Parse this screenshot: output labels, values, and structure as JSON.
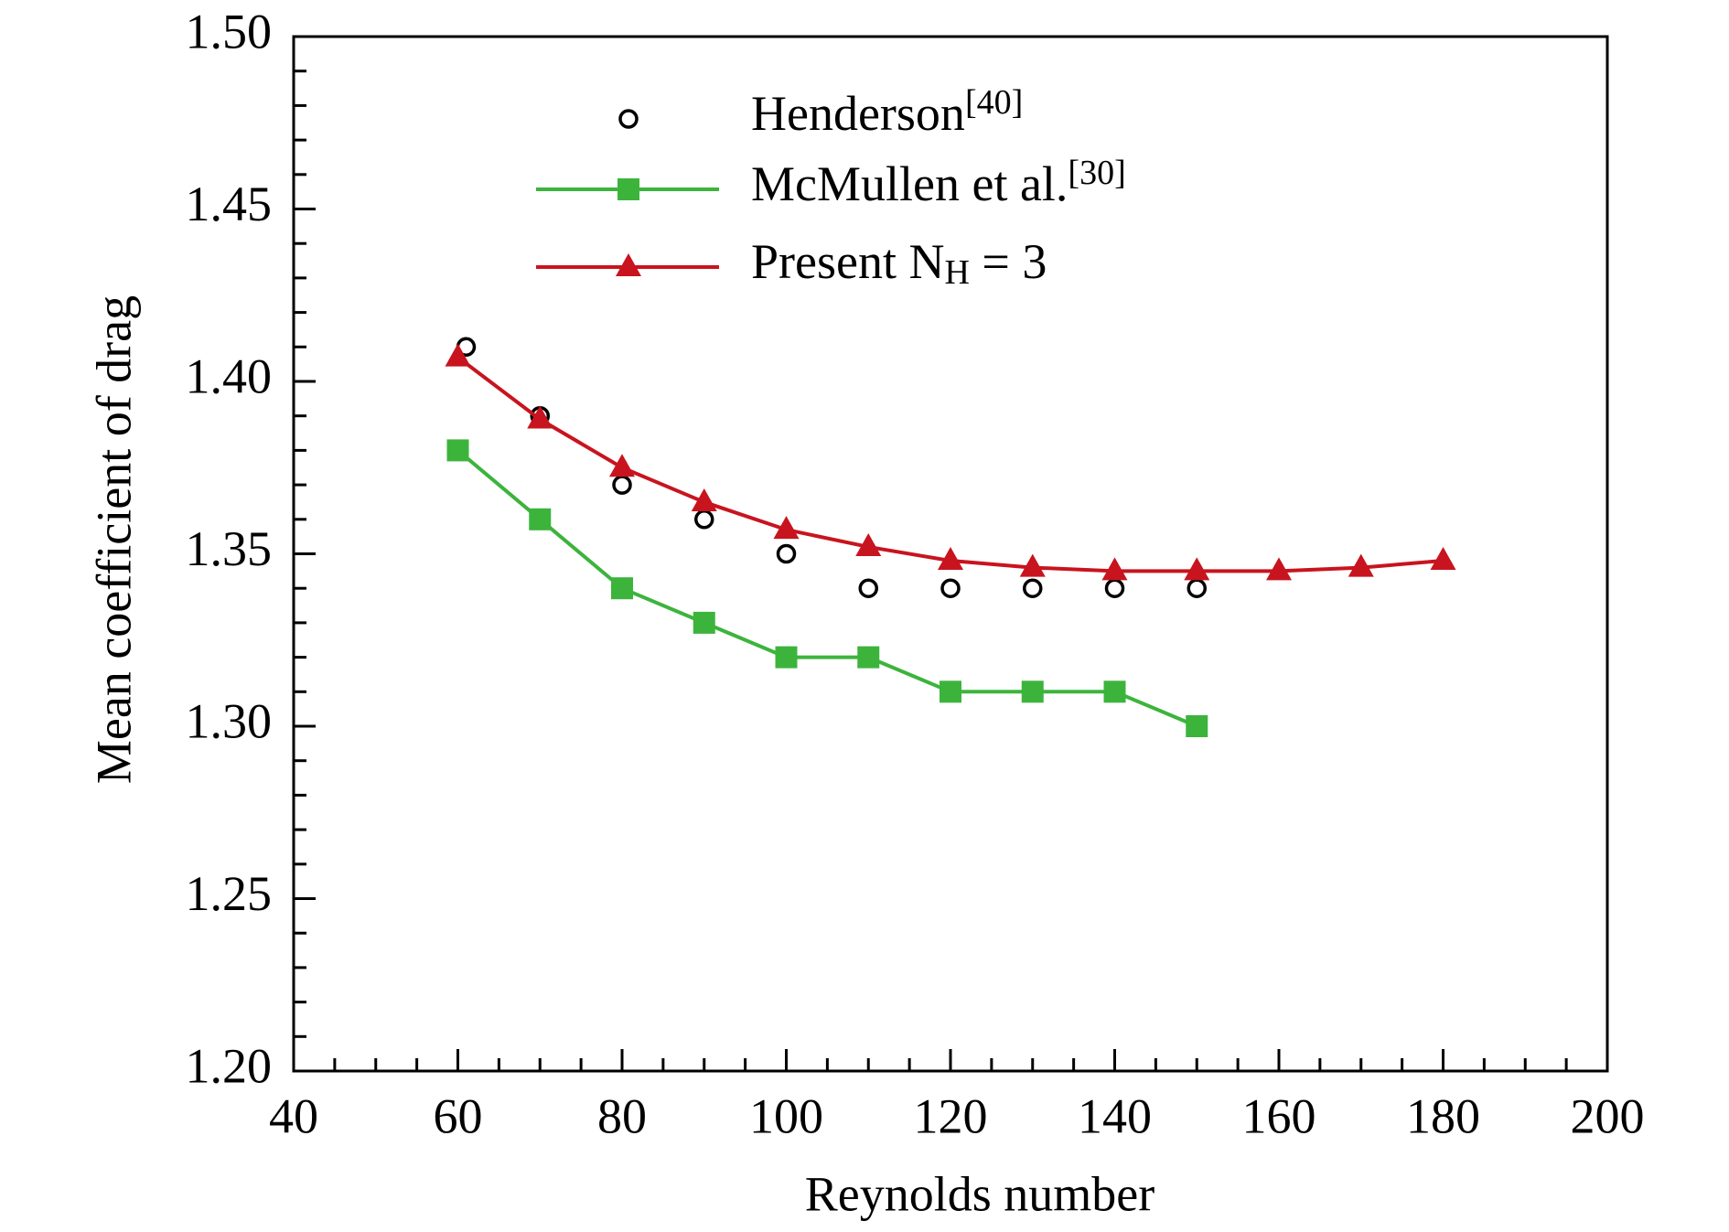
{
  "chart_data": {
    "type": "line",
    "x_label": "Reynolds number",
    "y_label": "Mean coefficient of drag",
    "xlim": [
      40,
      200
    ],
    "ylim": [
      1.2,
      1.5
    ],
    "xticks": [
      40,
      60,
      80,
      100,
      120,
      140,
      160,
      180,
      200
    ],
    "yticks": [
      {
        "value": 1.2,
        "label": "1.20"
      },
      {
        "value": 1.25,
        "label": "1.25"
      },
      {
        "value": 1.3,
        "label": "1.30"
      },
      {
        "value": 1.35,
        "label": "1.35"
      },
      {
        "value": 1.4,
        "label": "1.40"
      },
      {
        "value": 1.45,
        "label": "1.45"
      },
      {
        "value": 1.5,
        "label": "1.50"
      }
    ],
    "x_minor_ticks": [
      45,
      50,
      55,
      65,
      70,
      75,
      85,
      90,
      95,
      105,
      110,
      115,
      125,
      130,
      135,
      145,
      150,
      155,
      165,
      170,
      175,
      185,
      190,
      195
    ],
    "y_minor_ticks": [
      1.21,
      1.22,
      1.23,
      1.24,
      1.26,
      1.27,
      1.28,
      1.29,
      1.31,
      1.32,
      1.33,
      1.34,
      1.36,
      1.37,
      1.38,
      1.39,
      1.41,
      1.42,
      1.43,
      1.44,
      1.46,
      1.47,
      1.48,
      1.49
    ],
    "legend": "upper center",
    "series": [
      {
        "name": "Henderson[40]",
        "color": "#000000",
        "marker": "circle",
        "line": false,
        "x": [
          61,
          70,
          80,
          90,
          100,
          110,
          120,
          130,
          140,
          150
        ],
        "values": [
          1.41,
          1.39,
          1.37,
          1.36,
          1.35,
          1.34,
          1.34,
          1.34,
          1.34,
          1.34
        ]
      },
      {
        "name": "McMullen et al.[30]",
        "color": "#3cb43c",
        "marker": "square",
        "line": true,
        "x": [
          60,
          70,
          80,
          90,
          100,
          110,
          120,
          130,
          140,
          150
        ],
        "values": [
          1.38,
          1.36,
          1.34,
          1.33,
          1.32,
          1.32,
          1.31,
          1.31,
          1.31,
          1.3
        ]
      },
      {
        "name": "Present NH = 3",
        "color": "#c8141e",
        "marker": "triangle",
        "line": true,
        "x": [
          60,
          70,
          80,
          90,
          100,
          110,
          120,
          130,
          140,
          150,
          160,
          170,
          180
        ],
        "values": [
          1.407,
          1.389,
          1.375,
          1.365,
          1.357,
          1.352,
          1.348,
          1.346,
          1.345,
          1.345,
          1.345,
          1.346,
          1.348
        ]
      }
    ]
  }
}
